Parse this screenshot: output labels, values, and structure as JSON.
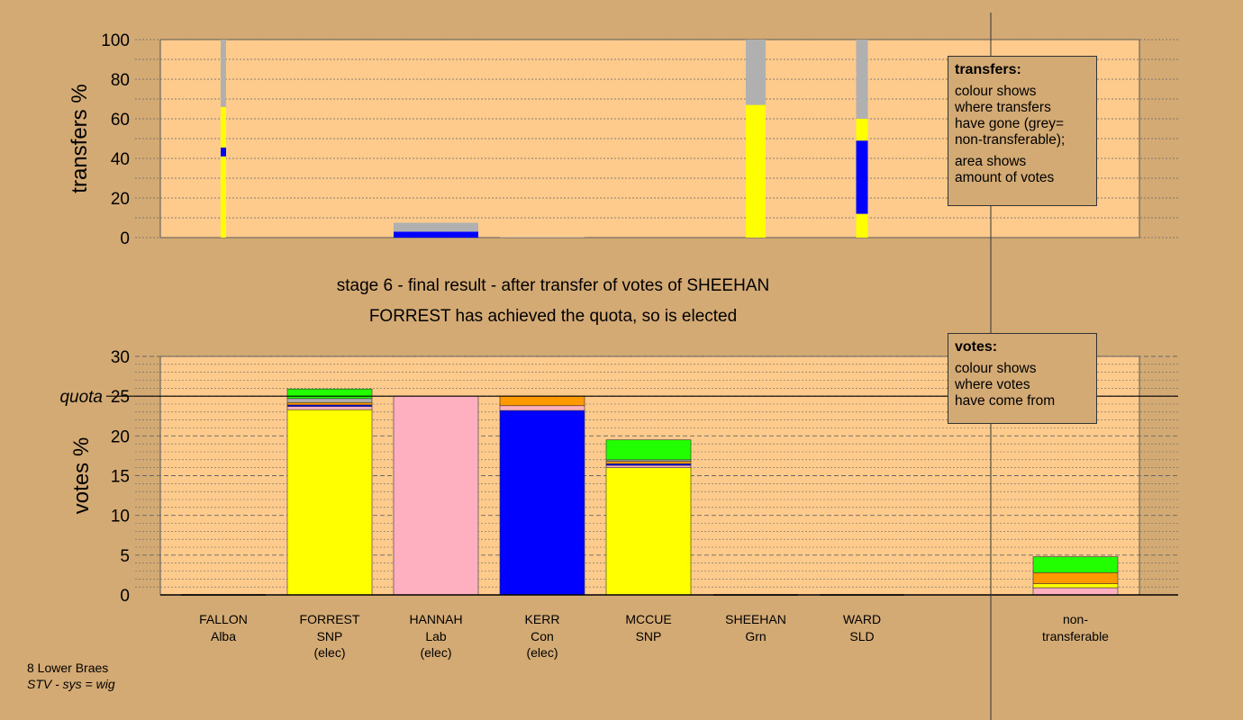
{
  "chart_data": [
    {
      "type": "bar",
      "chart": "transfers",
      "ylabel": "transfers %",
      "ylim": [
        0,
        100
      ],
      "yticks": [
        0,
        20,
        40,
        60,
        80,
        100
      ],
      "categories": [
        "FALLON",
        "FORREST",
        "HANNAH",
        "KERR",
        "MCCUE",
        "SHEEHAN",
        "WARD",
        "non-transferable"
      ],
      "stacks": [
        {
          "category": "FALLON",
          "width": "thin",
          "segments": [
            {
              "from": "yellow",
              "value": 41
            },
            {
              "from": "blue",
              "value": 4.5
            },
            {
              "from": "yellow",
              "value": 20.5
            },
            {
              "from": "grey",
              "value": 34
            }
          ]
        },
        {
          "category": "HANNAH",
          "width": "full",
          "segments": [
            {
              "from": "blue",
              "value": 3
            },
            {
              "from": "grey",
              "value": 4.5
            }
          ]
        },
        {
          "category": "KERR",
          "width": "full",
          "segments": [
            {
              "from": "grey",
              "value": 0.3
            }
          ]
        },
        {
          "category": "SHEEHAN",
          "width": "medium",
          "segments": [
            {
              "from": "yellow",
              "value": 67
            },
            {
              "from": "grey",
              "value": 33
            }
          ]
        },
        {
          "category": "WARD",
          "width": "narrow",
          "segments": [
            {
              "from": "yellow",
              "value": 12
            },
            {
              "from": "blue",
              "value": 37
            },
            {
              "from": "yellow",
              "value": 11
            },
            {
              "from": "grey",
              "value": 40
            }
          ]
        }
      ]
    },
    {
      "type": "bar",
      "chart": "votes",
      "ylabel": "votes %",
      "ylim": [
        0,
        30
      ],
      "yticks": [
        0,
        5,
        10,
        15,
        20,
        25,
        30
      ],
      "quota": 25,
      "quota_label": "quota",
      "categories": [
        "FALLON",
        "FORREST",
        "HANNAH",
        "KERR",
        "MCCUE",
        "SHEEHAN",
        "WARD",
        "non-transferable"
      ],
      "stacks": [
        {
          "category": "FALLON",
          "segments": []
        },
        {
          "category": "FORREST",
          "segments": [
            {
              "from": "yellow",
              "value": 23.3
            },
            {
              "from": "pink",
              "value": 0.4
            },
            {
              "from": "blue",
              "value": 0.2
            },
            {
              "from": "orange",
              "value": 0.3
            },
            {
              "from": "grey",
              "value": 0.5
            },
            {
              "from": "green",
              "value": 1.2
            }
          ]
        },
        {
          "category": "HANNAH",
          "segments": [
            {
              "from": "pink",
              "value": 25
            }
          ]
        },
        {
          "category": "KERR",
          "segments": [
            {
              "from": "blue",
              "value": 23.2
            },
            {
              "from": "pink",
              "value": 0.6
            },
            {
              "from": "orange",
              "value": 1.2
            }
          ]
        },
        {
          "category": "MCCUE",
          "segments": [
            {
              "from": "yellow",
              "value": 16
            },
            {
              "from": "pink",
              "value": 0.3
            },
            {
              "from": "blue",
              "value": 0.2
            },
            {
              "from": "orange",
              "value": 0.3
            },
            {
              "from": "grey",
              "value": 0.2
            },
            {
              "from": "green",
              "value": 2.5
            }
          ]
        },
        {
          "category": "SHEEHAN",
          "segments": []
        },
        {
          "category": "WARD",
          "segments": []
        },
        {
          "category": "non-transferable",
          "segments": [
            {
              "from": "pink",
              "value": 0.9
            },
            {
              "from": "yellow",
              "value": 0.5
            },
            {
              "from": "orange",
              "value": 1.4
            },
            {
              "from": "green",
              "value": 2
            }
          ]
        }
      ]
    }
  ],
  "candidates": [
    {
      "name": "FALLON",
      "party": "Alba",
      "status": ""
    },
    {
      "name": "FORREST",
      "party": "SNP",
      "status": "(elec)"
    },
    {
      "name": "HANNAH",
      "party": "Lab",
      "status": "(elec)"
    },
    {
      "name": "KERR",
      "party": "Con",
      "status": "(elec)"
    },
    {
      "name": "MCCUE",
      "party": "SNP",
      "status": ""
    },
    {
      "name": "SHEEHAN",
      "party": "Grn",
      "status": ""
    },
    {
      "name": "WARD",
      "party": "SLD",
      "status": ""
    },
    {
      "name": "non-",
      "party": "transferable",
      "status": ""
    }
  ],
  "titles": {
    "line1": "stage 6 - final result - after transfer of votes of SHEEHAN",
    "line2": "FORREST has achieved the quota, so is elected"
  },
  "transfers_key": {
    "title": "transfers:",
    "lines_a": [
      "colour shows",
      "where transfers",
      "have gone (grey=",
      "non-transferable);"
    ],
    "lines_b": [
      "area shows",
      "amount of votes"
    ]
  },
  "votes_key": {
    "title": "votes:",
    "lines": [
      "colour shows",
      "where votes",
      "have come from"
    ]
  },
  "footer": {
    "ward": "8 Lower Braes",
    "system": "STV - sys = wig"
  },
  "colors": {
    "background": "#d4aa74",
    "plot": "#fecb8c",
    "yellow": "#ffff00",
    "blue": "#0000ff",
    "pink": "#ffb0c0",
    "orange": "#ff9900",
    "green": "#22ff00",
    "grey": "#b0b0b0"
  }
}
